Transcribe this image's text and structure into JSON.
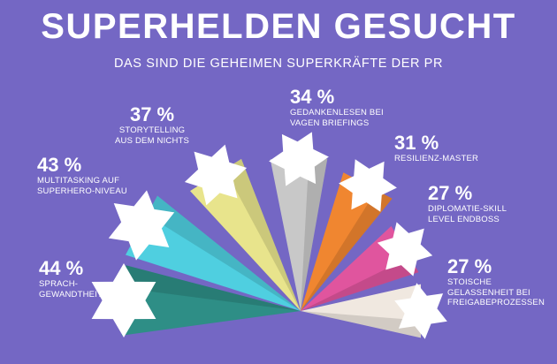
{
  "title": "SUPERHELDEN GESUCHT",
  "subtitle": "DAS SIND DIE GEHEIMEN SUPERKRÄFTE DER PR",
  "chart_data": {
    "type": "bar",
    "categories": [
      "SPRACH-GEWANDTHEIT",
      "MULTITASKING AUF SUPERHERO-NIVEAU",
      "STORYTELLING AUS DEM NICHTS",
      "GEDANKENLESEN BEI VAGEN BRIEFINGS",
      "RESILIENZ-MASTER",
      "DIPLOMATIE-SKILL LEVEL ENDBOSS",
      "STOISCHE GELASSENHEIT BEI FREIGABEPROZESSEN"
    ],
    "values": [
      44,
      43,
      37,
      34,
      31,
      27,
      27
    ],
    "value_labels": [
      "44 %",
      "43 %",
      "37 %",
      "34 %",
      "31 %",
      "27 %",
      "27 %"
    ],
    "label_lines": [
      [
        "SPRACH-",
        "GEWANDTHEIT"
      ],
      [
        "MULTITASKING AUF",
        "SUPERHERO-NIVEAU"
      ],
      [
        "STORYTELLING",
        "AUS DEM NICHTS"
      ],
      [
        "GEDANKENLESEN BEI",
        "VAGEN BRIEFINGS"
      ],
      [
        "RESILIENZ-MASTER"
      ],
      [
        "DIPLOMATIE-SKILL",
        "LEVEL ENDBOSS"
      ],
      [
        "STOISCHE",
        "GELASSENHEIT BEI",
        "FREIGABEPROZESSEN"
      ]
    ],
    "colors": [
      "#2e8e86",
      "#4fcfe0",
      "#e8e48c",
      "#c8c8c8",
      "#f08630",
      "#e0559e",
      "#f0e8e0"
    ],
    "star_color": "#ffffff",
    "background": "#7467c4",
    "xlabel": "",
    "ylabel": "",
    "legend": "none",
    "grid": false
  }
}
